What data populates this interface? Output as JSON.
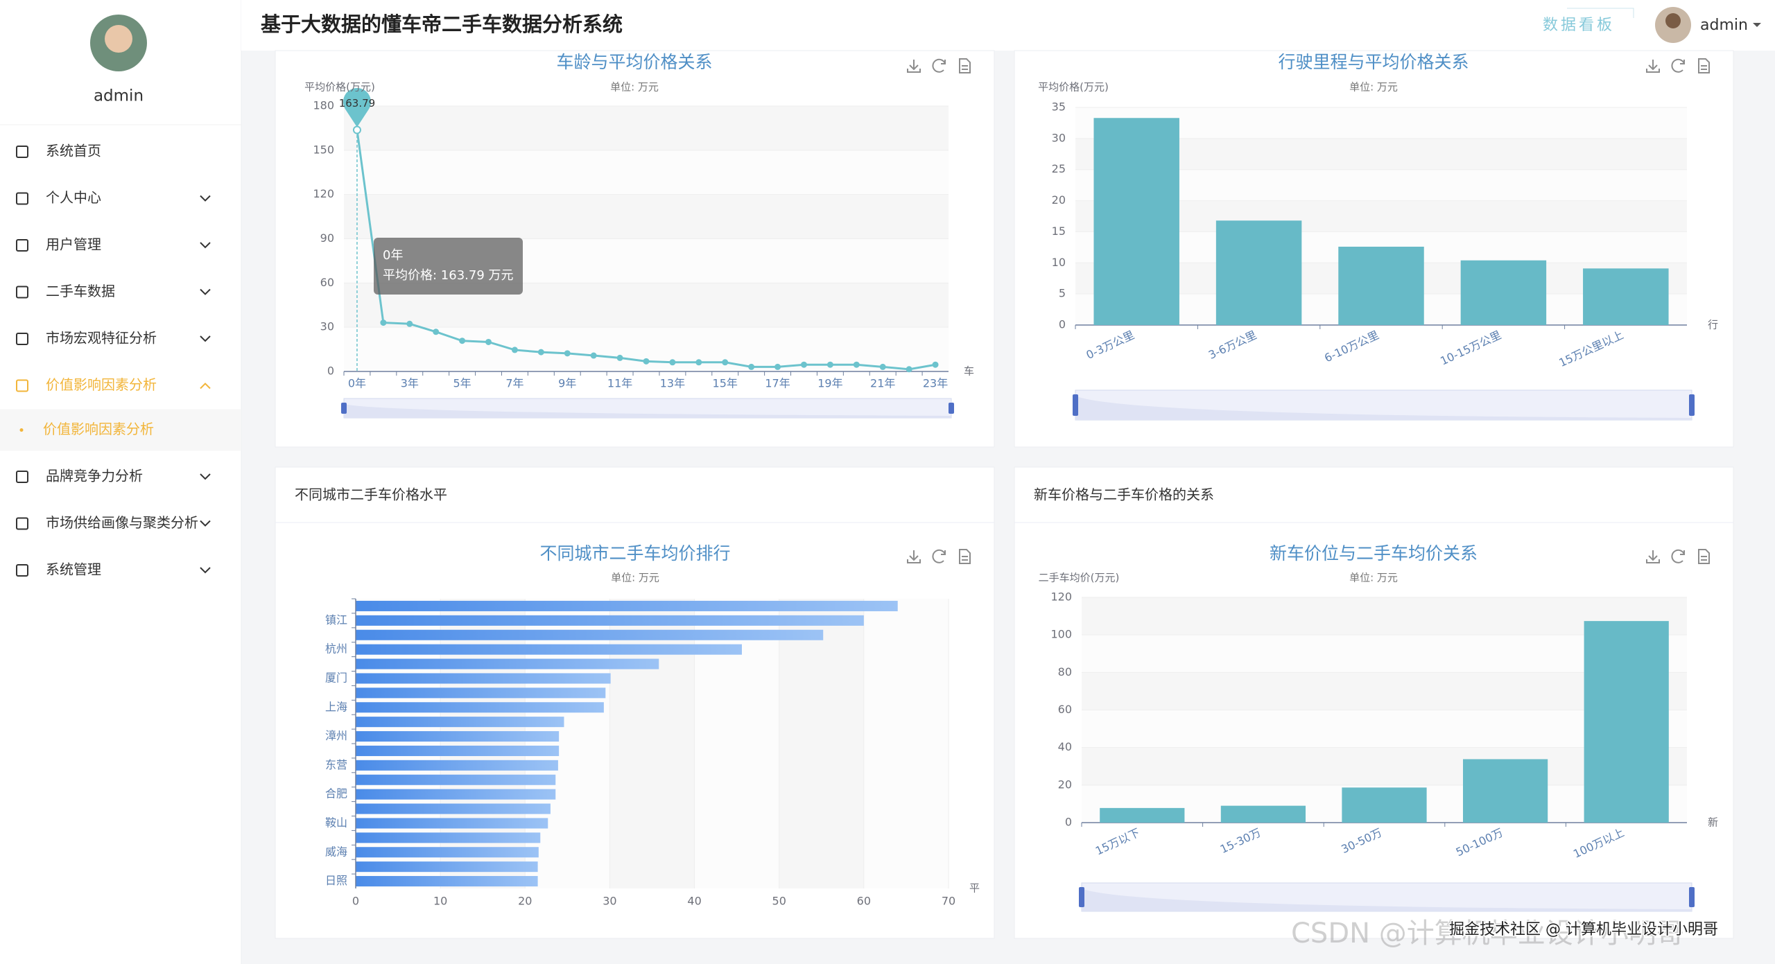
{
  "header": {
    "title": "基于大数据的懂车帝二手车数据分析系统",
    "nav": "数据看板",
    "user": "admin"
  },
  "sidebar": {
    "user": "admin",
    "menu": [
      "系统首页",
      "个人中心",
      "用户管理",
      "二手车数据",
      "市场宏观特征分析",
      "价值影响因素分析",
      "品牌竞争力分析",
      "市场供给画像与聚类分析",
      "系统管理"
    ],
    "active": 5,
    "submenu": [
      "价值影响因素分析"
    ]
  },
  "panels": [
    "不同城市二手车价格水平",
    "新车价格与二手车价格的关系"
  ],
  "watermark": [
    "CSDN @计算机毕业设计小明哥",
    "掘金技术社区 @ 计算机毕业设计小明哥"
  ],
  "chart_data": [
    {
      "type": "line",
      "title": "车龄与平均价格关系",
      "subtitle": "单位: 万元",
      "y_label": "平均价格(万元)",
      "x_label": "车",
      "categories": [
        "0年",
        null,
        "3年",
        null,
        "5年",
        null,
        "7年",
        null,
        "9年",
        null,
        "11年",
        null,
        "13年",
        null,
        "15年",
        null,
        "17年",
        null,
        "19年",
        null,
        "21年",
        null,
        "23年"
      ],
      "series": [
        {
          "name": "平均价格",
          "color": "#6cc3cd",
          "values": [
            163.79,
            33.1,
            32.3,
            26.9,
            20.8,
            20.0,
            14.6,
            13.1,
            12.3,
            10.8,
            9.2,
            6.9,
            6.2,
            6.2,
            6.2,
            3.1,
            3.1,
            4.6,
            4.6,
            4.6,
            3.1,
            1.5,
            4.6
          ]
        }
      ],
      "ylim": [
        0,
        180
      ],
      "yticks": [
        0,
        30,
        60,
        90,
        120,
        150,
        180
      ],
      "split_area": true,
      "mark_point": true,
      "tooltip": {
        "title": "0年",
        "text": "平均价格: 163.79 万元"
      }
    },
    {
      "type": "bar",
      "title": "行驶里程与平均价格关系",
      "subtitle": "单位: 万元",
      "y_label": "平均价格(万元)",
      "x_label": "行",
      "categories": [
        "0-3万公里",
        "3-6万公里",
        "6-10万公里",
        "10-15万公里",
        "15万公里以上"
      ],
      "values": [
        33.3,
        16.8,
        12.6,
        10.4,
        9.1
      ],
      "color": "#67bac7",
      "ylim": [
        0,
        35
      ],
      "yticks": [
        0,
        5,
        10,
        15,
        20,
        25,
        30,
        35
      ],
      "split_area": true
    },
    {
      "type": "bar",
      "horizontal": true,
      "title": "不同城市二手车均价排行",
      "subtitle": "单位: 万元",
      "x_label": "平",
      "categories": [
        null,
        "镇江",
        null,
        "杭州",
        null,
        "厦门",
        null,
        "上海",
        null,
        "漳州",
        null,
        "东营",
        null,
        "合肥",
        null,
        "鞍山",
        null,
        "威海",
        null,
        "日照"
      ],
      "values": [
        64.0,
        60.0,
        55.2,
        45.6,
        35.8,
        30.1,
        29.5,
        29.3,
        24.6,
        24.0,
        24.0,
        23.9,
        23.6,
        23.6,
        23.0,
        22.7,
        21.8,
        21.6,
        21.5,
        21.5
      ],
      "color": [
        "#4a8be8",
        "#9cc3f5"
      ],
      "xlim": [
        0,
        70
      ],
      "xticks": [
        0,
        10,
        20,
        30,
        40,
        50,
        60,
        70
      ],
      "split_area": true
    },
    {
      "type": "bar",
      "title": "新车价位与二手车均价关系",
      "subtitle": "单位: 万元",
      "y_label": "二手车均价(万元)",
      "x_label": "新",
      "categories": [
        "15万以下",
        "15-30万",
        "30-50万",
        "50-100万",
        "100万以上"
      ],
      "values": [
        7.8,
        9.0,
        18.7,
        33.8,
        107.4
      ],
      "color": "#67bac7",
      "ylim": [
        0,
        120
      ],
      "yticks": [
        0,
        20,
        40,
        60,
        80,
        100,
        120
      ],
      "split_area": true
    }
  ]
}
